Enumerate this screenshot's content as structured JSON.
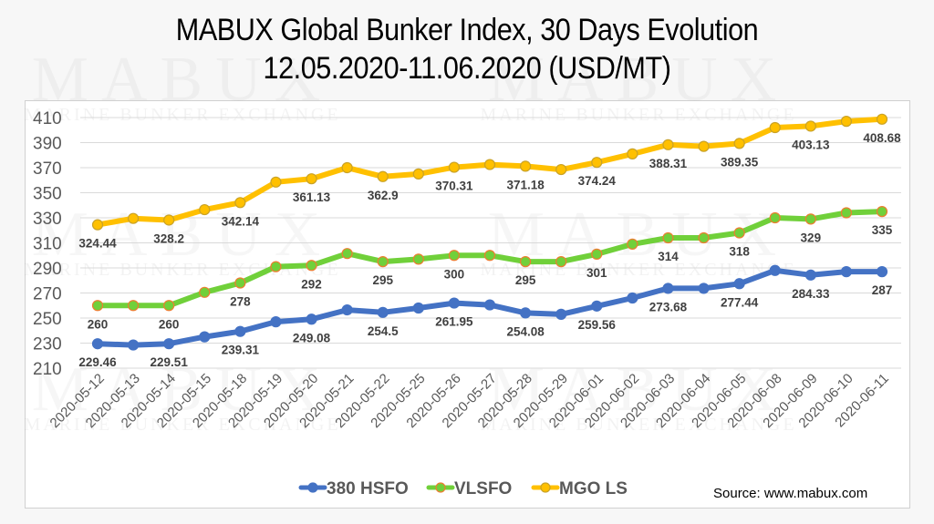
{
  "title": {
    "line1": "MABUX Global Bunker Index, 30 Days Evolution",
    "line2": "12.05.2020-11.06.2020 (USD/MT)"
  },
  "watermark": {
    "brand": "MABUX",
    "tagline": "MARINE BUNKER EXCHANGE"
  },
  "source": "Source: www.mabux.com",
  "colors": {
    "hsfo": "#4472c4",
    "vlsfo": "#70d03a",
    "vlsfo_marker_border": "#ed7d31",
    "mgo": "#ffc000",
    "mgo_marker_border": "#c9a227",
    "grid": "#d9d9d9",
    "axis_text": "#595959",
    "label_text": "#404040"
  },
  "chart_data": {
    "type": "line",
    "title": "MABUX Global Bunker Index, 30 Days Evolution 12.05.2020-11.06.2020 (USD/MT)",
    "xlabel": "",
    "ylabel": "",
    "ylim": [
      210,
      410
    ],
    "yticks": [
      410,
      390,
      370,
      350,
      330,
      310,
      290,
      270,
      250,
      230,
      210
    ],
    "grid": true,
    "legend_position": "bottom",
    "categories": [
      "2020-05-12",
      "2020-05-13",
      "2020-05-14",
      "2020-05-15",
      "2020-05-18",
      "2020-05-19",
      "2020-05-20",
      "2020-05-21",
      "2020-05-22",
      "2020-05-25",
      "2020-05-26",
      "2020-05-27",
      "2020-05-28",
      "2020-05-29",
      "2020-06-01",
      "2020-06-02",
      "2020-06-03",
      "2020-06-04",
      "2020-06-05",
      "2020-06-08",
      "2020-06-09",
      "2020-06-10",
      "2020-06-11"
    ],
    "series": [
      {
        "name": "380 HSFO",
        "key": "hsfo",
        "values": [
          229.46,
          228.5,
          229.51,
          235.0,
          239.31,
          247.0,
          249.08,
          256.5,
          254.5,
          258.0,
          261.95,
          260.5,
          254.08,
          253.0,
          259.56,
          266.0,
          273.68,
          273.7,
          277.44,
          288.0,
          284.33,
          287.0,
          287
        ],
        "labels": [
          "229.46",
          "",
          "229.51",
          "",
          "239.31",
          "",
          "249.08",
          "",
          "254.5",
          "",
          "261.95",
          "",
          "254.08",
          "",
          "259.56",
          "",
          "273.68",
          "",
          "277.44",
          "",
          "284.33",
          "",
          "287"
        ]
      },
      {
        "name": "VLSFO",
        "key": "vlsfo",
        "values": [
          260,
          260,
          260,
          270.5,
          278,
          291,
          292,
          301.5,
          295,
          297,
          300,
          300,
          295,
          295,
          301,
          309,
          314,
          314,
          318,
          330,
          329,
          334,
          335
        ],
        "labels": [
          "260",
          "",
          "260",
          "",
          "278",
          "",
          "292",
          "",
          "295",
          "",
          "300",
          "",
          "295",
          "",
          "301",
          "",
          "314",
          "",
          "318",
          "",
          "329",
          "",
          "335"
        ]
      },
      {
        "name": "MGO LS",
        "key": "mgo",
        "values": [
          324.44,
          329.5,
          328.2,
          336.5,
          342.14,
          358.5,
          361.13,
          370.0,
          362.9,
          365.0,
          370.31,
          372.5,
          371.18,
          368.5,
          374.24,
          381.0,
          388.31,
          387.0,
          389.35,
          402.0,
          403.13,
          407.0,
          408.68
        ],
        "labels": [
          "324.44",
          "",
          "328.2",
          "",
          "342.14",
          "",
          "361.13",
          "",
          "362.9",
          "",
          "370.31",
          "",
          "371.18",
          "",
          "374.24",
          "",
          "388.31",
          "",
          "389.35",
          "",
          "403.13",
          "",
          "408.68"
        ]
      }
    ]
  }
}
